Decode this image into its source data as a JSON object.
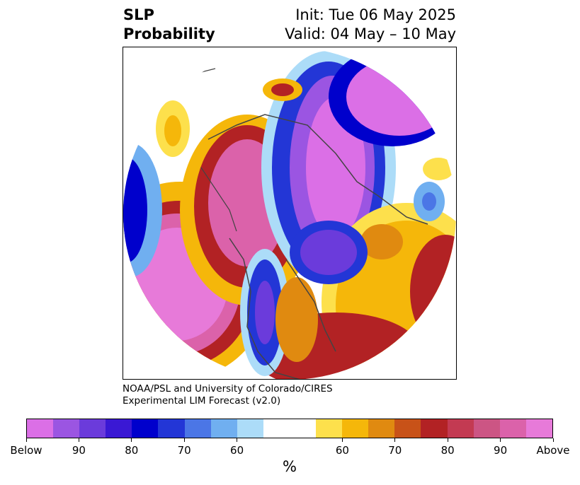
{
  "header": {
    "title_line1": "SLP",
    "title_line2": "Probability",
    "init": "Init: Tue 06 May 2025",
    "valid": "Valid: 04 May – 10 May"
  },
  "credit": {
    "line1": "NOAA/PSL and University of Colorado/CIRES",
    "line2": "Experimental LIM Forecast (v2.0)"
  },
  "colorbar": {
    "colors": [
      "#db6fe6",
      "#9b55e2",
      "#6b3bdb",
      "#3a18d4",
      "#0000cc",
      "#2336d6",
      "#4b76e6",
      "#70aff0",
      "#acdcf8",
      "#ffffff",
      "#ffffff",
      "#fde04c",
      "#f5b70a",
      "#e08a10",
      "#c85218",
      "#b22224",
      "#c33a52",
      "#cc5584",
      "#db62aa",
      "#e77ad9"
    ],
    "tick_labels": [
      "Below",
      "90",
      "80",
      "70",
      "60",
      "60",
      "70",
      "80",
      "90",
      "Above"
    ],
    "unit": "%"
  }
}
